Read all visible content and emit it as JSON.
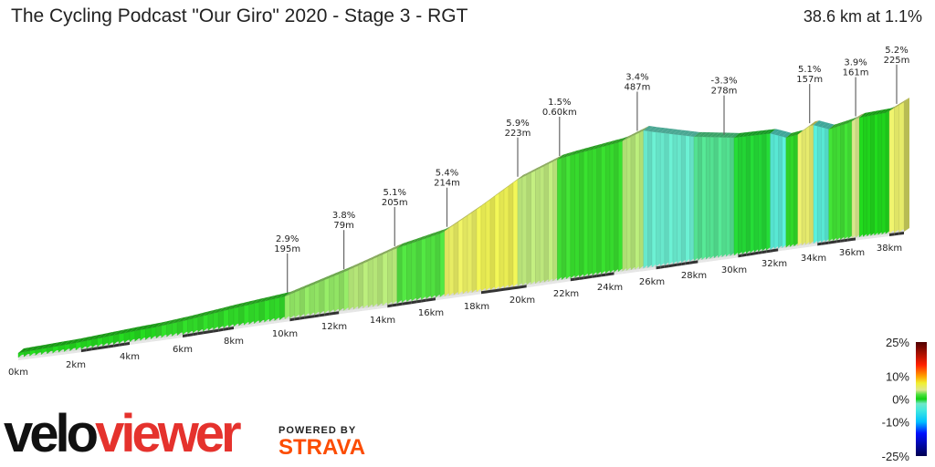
{
  "header": {
    "title": "The Cycling Podcast \"Our Giro\" 2020 - Stage 3 - RGT",
    "summary": "38.6 km at 1.1%"
  },
  "chart_data": {
    "type": "area",
    "title": "The Cycling Podcast \"Our Giro\" 2020 - Stage 3 - RGT",
    "total_distance_km": 38.6,
    "average_gradient_pct": 1.1,
    "x_ticks": [
      "0km",
      "2km",
      "4km",
      "6km",
      "8km",
      "10km",
      "12km",
      "14km",
      "16km",
      "18km",
      "20km",
      "22km",
      "24km",
      "26km",
      "28km",
      "30km",
      "32km",
      "34km",
      "36km",
      "38km"
    ],
    "x_tick_values": [
      0,
      2,
      4,
      6,
      8,
      10,
      12,
      14,
      16,
      18,
      20,
      22,
      24,
      26,
      28,
      30,
      32,
      34,
      36,
      38
    ],
    "gradient_segments": [
      {
        "from_km": 0,
        "to_km": 5,
        "grade": 0.6
      },
      {
        "from_km": 5,
        "to_km": 10,
        "grade": 1.0
      },
      {
        "from_km": 10,
        "to_km": 12.5,
        "grade": 2.9
      },
      {
        "from_km": 12.5,
        "to_km": 14.5,
        "grade": 3.4
      },
      {
        "from_km": 14.5,
        "to_km": 16.5,
        "grade": 2.0
      },
      {
        "from_km": 16.5,
        "to_km": 18,
        "grade": 5.4
      },
      {
        "from_km": 18,
        "to_km": 19.8,
        "grade": 5.9
      },
      {
        "from_km": 19.8,
        "to_km": 21.6,
        "grade": 3.5
      },
      {
        "from_km": 21.6,
        "to_km": 22.2,
        "grade": 1.5
      },
      {
        "from_km": 22.2,
        "to_km": 24.5,
        "grade": 1.2
      },
      {
        "from_km": 24.5,
        "to_km": 25.6,
        "grade": 3.4
      },
      {
        "from_km": 25.6,
        "to_km": 28,
        "grade": -2.5
      },
      {
        "from_km": 28,
        "to_km": 30,
        "grade": -1.4
      },
      {
        "from_km": 30,
        "to_km": 31.8,
        "grade": -0.4
      },
      {
        "from_km": 31.8,
        "to_km": 32.6,
        "grade": -3.5
      },
      {
        "from_km": 32.6,
        "to_km": 33.2,
        "grade": 1.0
      },
      {
        "from_km": 33.2,
        "to_km": 33.9,
        "grade": 5.1
      },
      {
        "from_km": 33.9,
        "to_km": 34.8,
        "grade": -3.5
      },
      {
        "from_km": 34.8,
        "to_km": 35.9,
        "grade": 1.5
      },
      {
        "from_km": 35.9,
        "to_km": 36.3,
        "grade": 3.9
      },
      {
        "from_km": 36.3,
        "to_km": 37.9,
        "grade": 0.5
      },
      {
        "from_km": 37.9,
        "to_km": 38.6,
        "grade": 5.2
      }
    ],
    "annotations": [
      {
        "km": 10.1,
        "grade": "2.9%",
        "length": "195m"
      },
      {
        "km": 12.4,
        "grade": "3.8%",
        "length": "79m"
      },
      {
        "km": 14.5,
        "grade": "5.1%",
        "length": "205m"
      },
      {
        "km": 16.7,
        "grade": "5.4%",
        "length": "214m"
      },
      {
        "km": 19.8,
        "grade": "5.9%",
        "length": "223m"
      },
      {
        "km": 21.7,
        "grade": "1.5%",
        "length": "0.60km"
      },
      {
        "km": 25.3,
        "grade": "3.4%",
        "length": "487m"
      },
      {
        "km": 29.5,
        "grade": "-3.3%",
        "length": "278m"
      },
      {
        "km": 33.8,
        "grade": "5.1%",
        "length": "157m"
      },
      {
        "km": 36.2,
        "grade": "3.9%",
        "length": "161m"
      },
      {
        "km": 38.3,
        "grade": "5.2%",
        "length": "225m"
      }
    ],
    "legend": {
      "labels": [
        "25%",
        "10%",
        "0%",
        "-10%",
        "-25%"
      ],
      "values": [
        25,
        10,
        0,
        -10,
        -25
      ],
      "colors": {
        "-25": "#000050",
        "-15": "#0010ff",
        "-10": "#00c0ff",
        "-5": "#40e8e0",
        "-2": "#70e8c8",
        "0": "#10d010",
        "2": "#50e040",
        "4": "#e0e890",
        "7": "#f0f030",
        "10": "#ffa000",
        "15": "#ff2000",
        "25": "#500000"
      }
    }
  },
  "branding": {
    "logo_part1": "velo",
    "logo_part2": "viewer",
    "powered_by": "POWERED BY",
    "strava": "STRAVA",
    "logo_red": "#e5322d",
    "strava_orange": "#fc4c02"
  }
}
